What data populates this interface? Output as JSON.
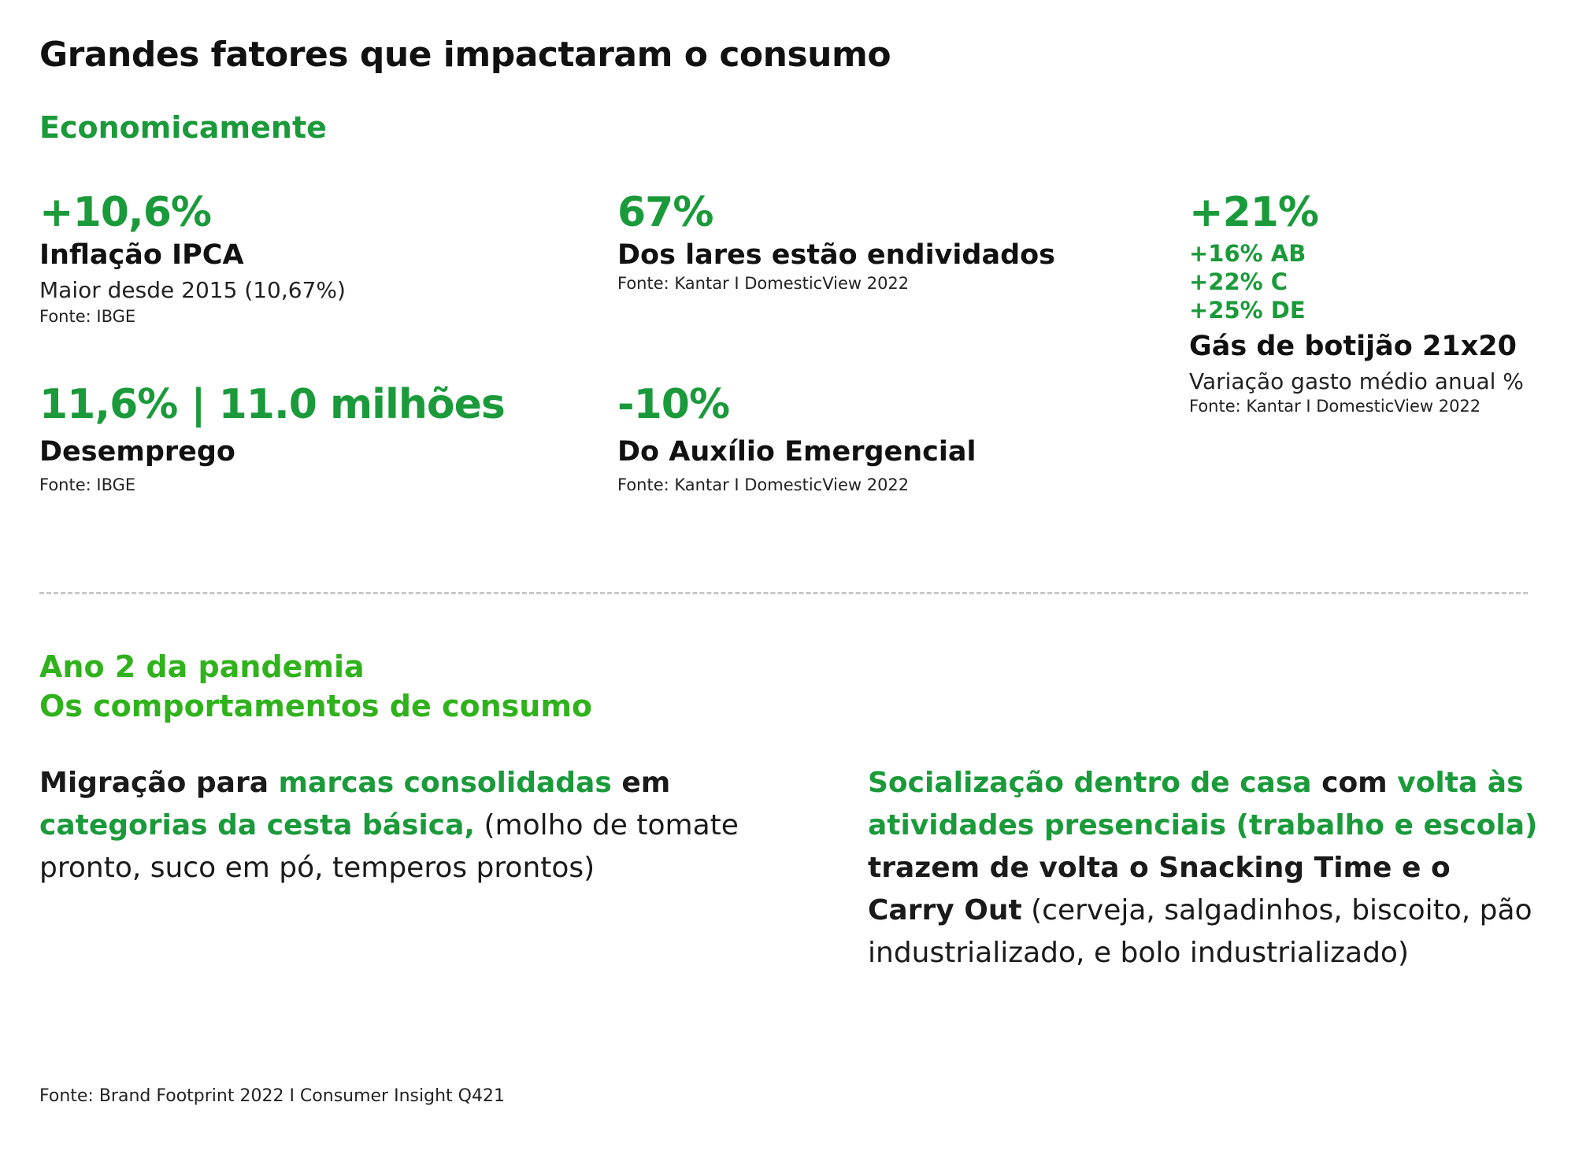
{
  "title": "Grandes fatores que impactaram o consumo",
  "section1": {
    "heading": "Economicamente",
    "stats": {
      "inflacao": {
        "value": "+10,6%",
        "label": "Inflação IPCA",
        "sub": "Maior desde 2015 (10,67%)",
        "source": "Fonte: IBGE"
      },
      "lares": {
        "value": "67%",
        "label": "Dos lares estão endividados",
        "source": "Fonte: Kantar I  DomesticView 2022"
      },
      "gas": {
        "value": "+21%",
        "segments": [
          "+16% AB",
          "+22% C",
          "+25% DE"
        ],
        "label": "Gás de botijão 21x20",
        "sub": "Variação gasto médio anual %",
        "source": "Fonte: Kantar I  DomesticView 2022"
      },
      "desemprego": {
        "value": "11,6% | 11.0 milhões",
        "label": "Desemprego",
        "source": "Fonte: IBGE"
      },
      "auxilio": {
        "value": "-10%",
        "label": "Do Auxílio Emergencial",
        "source": "Fonte: Kantar I  DomesticView 2022"
      }
    }
  },
  "section2": {
    "heading_line1": "Ano 2 da pandemia",
    "heading_line2": "Os comportamentos de consumo",
    "left": {
      "p1": "Migração para ",
      "p2": "marcas consolidadas",
      "p3": " em ",
      "p4": "categorias da cesta básica,",
      "p5": " (molho de tomate pronto, suco em pó, temperos prontos)"
    },
    "right": {
      "p1": "Socialização dentro de casa",
      "p2": " com ",
      "p3": "volta às atividades presenciais (trabalho e escola)",
      "p4": " trazem de volta o Snacking Time e o Carry Out",
      "p5": " (cerveja, salgadinhos, biscoito, pão industrializado, e bolo industrializado)"
    }
  },
  "footer": "Fonte: Brand Footprint 2022 I Consumer Insight Q421",
  "colors": {
    "green_dark": "#1a9a3a",
    "green_bright": "#2fb21b",
    "divider": "#c8c8c8"
  }
}
